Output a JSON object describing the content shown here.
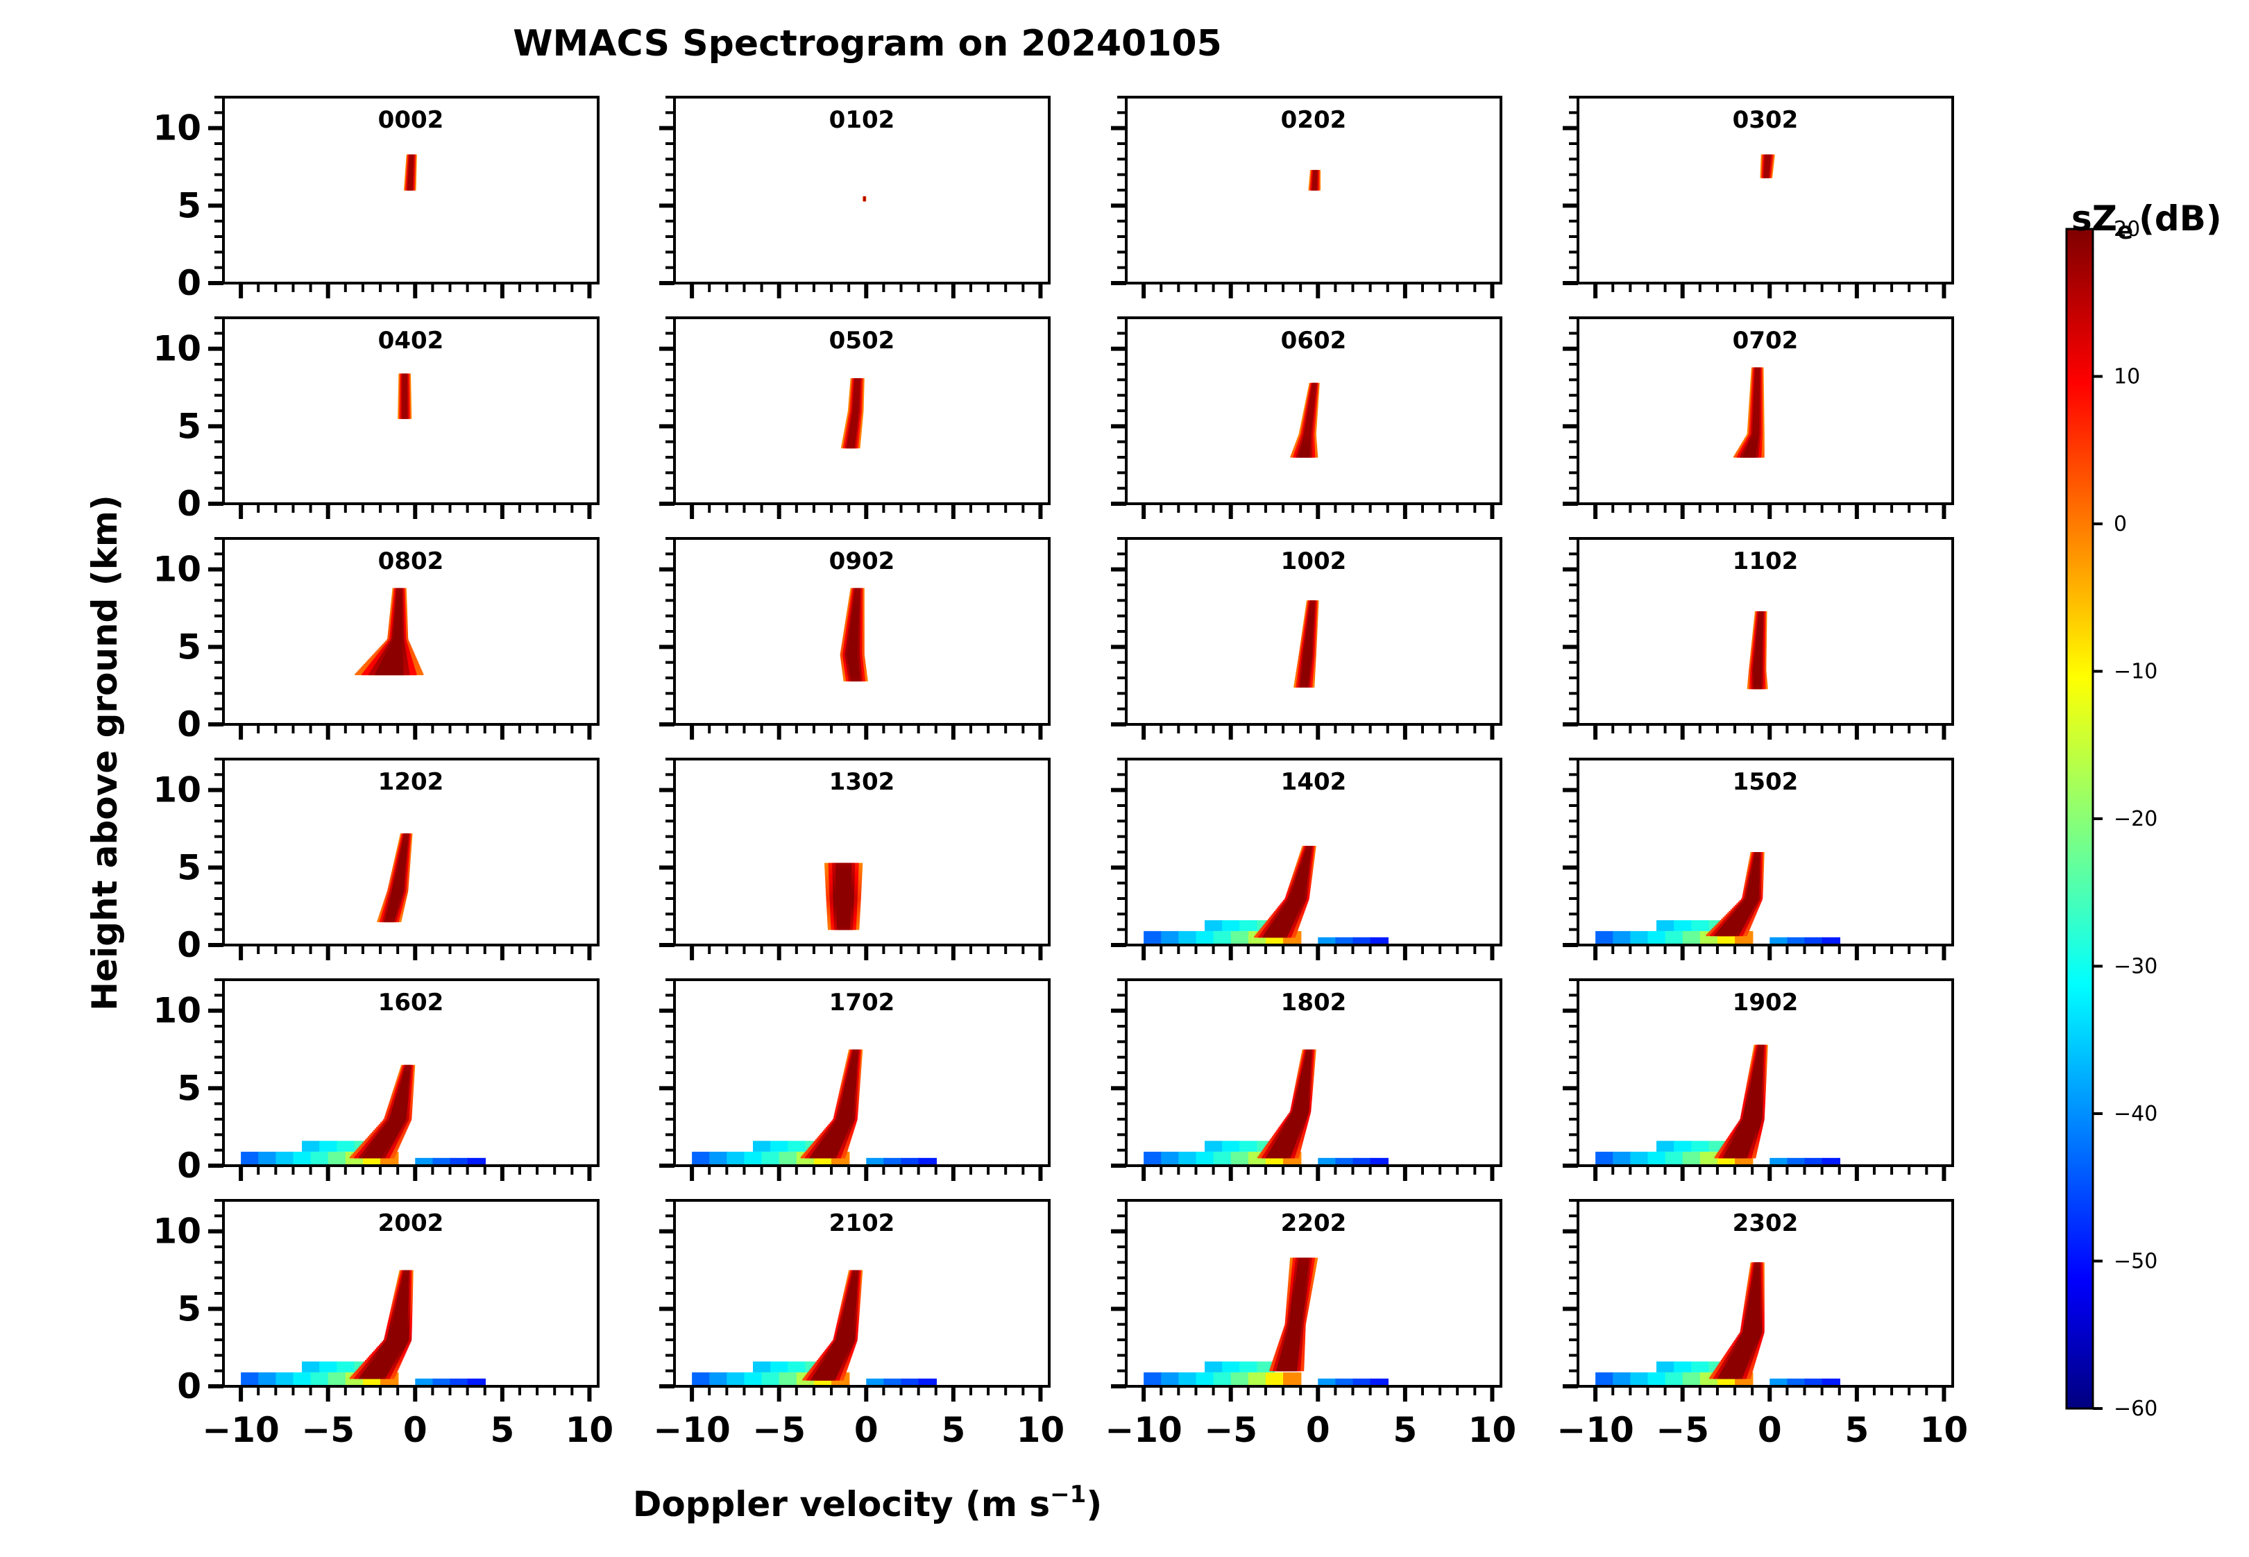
{
  "chart_data": {
    "type": "heatmap",
    "title": "WMACS Spectrogram on 20240105",
    "xlabel": "Doppler velocity (m s",
    "xlabel_exponent": "−1",
    "xlabel_close": ")",
    "ylabel": "Height above ground (km)",
    "xlim": [
      -11,
      10.5
    ],
    "ylim": [
      0,
      12
    ],
    "x_ticks": [
      -10,
      -5,
      0,
      5,
      10
    ],
    "x_tick_labels": [
      "−10",
      "−5",
      "0",
      "5",
      "10"
    ],
    "y_ticks": [
      0,
      5,
      10
    ],
    "y_tick_labels": [
      "0",
      "5",
      "10"
    ],
    "colorbar": {
      "label": "sZ",
      "label_subscript": "e",
      "label_units": "(dB)",
      "min": -60,
      "max": 20,
      "colormap": "jet",
      "ticks": [
        20,
        10,
        0,
        -10,
        -20,
        -30,
        -40,
        -50,
        -60
      ],
      "tick_labels": [
        "20",
        "10",
        "0",
        "−10",
        "−20",
        "−30",
        "−40",
        "−50",
        "−60"
      ]
    },
    "panels": [
      {
        "label": "0002",
        "column": [
          [
            6.0,
            -0.3,
            0.35,
            -0.3
          ],
          [
            8.3,
            -0.2,
            0.3,
            -0.35
          ]
        ],
        "ground": 0
      },
      {
        "label": "0102",
        "column": [
          [
            5.3,
            -0.1,
            0.1,
            -0.35
          ],
          [
            5.6,
            -0.1,
            0.1,
            -0.35
          ]
        ],
        "ground": 0
      },
      {
        "label": "0202",
        "column": [
          [
            6.0,
            -0.2,
            0.35,
            -0.3
          ],
          [
            7.3,
            -0.15,
            0.3,
            -0.35
          ]
        ],
        "ground": 0
      },
      {
        "label": "0302",
        "column": [
          [
            6.8,
            -0.2,
            0.35,
            -0.3
          ],
          [
            8.3,
            -0.1,
            0.4,
            -0.35
          ]
        ],
        "ground": 0
      },
      {
        "label": "0402",
        "column": [
          [
            5.5,
            -0.6,
            0.4,
            -0.3
          ],
          [
            8.4,
            -0.6,
            0.35,
            -0.3
          ]
        ],
        "ground": 0
      },
      {
        "label": "0502",
        "column": [
          [
            3.6,
            -0.9,
            0.55,
            -0.05
          ],
          [
            6.0,
            -0.6,
            0.45,
            -0.15
          ],
          [
            8.1,
            -0.5,
            0.4,
            -0.35
          ]
        ],
        "ground": 0
      },
      {
        "label": "0602",
        "column": [
          [
            3.0,
            -0.8,
            0.8,
            2
          ],
          [
            4.5,
            -0.6,
            0.5,
            -0.1
          ],
          [
            7.8,
            -0.2,
            0.3,
            -0.35
          ]
        ],
        "ground": 0
      },
      {
        "label": "0702",
        "column": [
          [
            3.0,
            -1.2,
            0.9,
            3
          ],
          [
            4.5,
            -0.8,
            0.5,
            0
          ],
          [
            8.8,
            -0.7,
            0.35,
            -0.25
          ]
        ],
        "ground": 0
      },
      {
        "label": "0802",
        "column": [
          [
            3.2,
            -1.5,
            2.0,
            1.5
          ],
          [
            5.5,
            -1.0,
            0.6,
            4
          ],
          [
            8.8,
            -0.9,
            0.4,
            -0.2
          ]
        ],
        "ground": 0
      },
      {
        "label": "0902",
        "column": [
          [
            2.8,
            -0.6,
            0.7,
            -0.1
          ],
          [
            4.5,
            -0.8,
            0.7,
            4
          ],
          [
            8.8,
            -0.5,
            0.4,
            -0.3
          ]
        ],
        "ground": 0
      },
      {
        "label": "1002",
        "column": [
          [
            2.4,
            -0.8,
            0.6,
            -0.1
          ],
          [
            4.5,
            -0.6,
            0.5,
            4
          ],
          [
            8.0,
            -0.3,
            0.35,
            -0.3
          ]
        ],
        "ground": 0
      },
      {
        "label": "1102",
        "column": [
          [
            2.3,
            -0.7,
            0.6,
            -0.1
          ],
          [
            3.5,
            -0.7,
            0.5,
            4
          ],
          [
            7.3,
            -0.5,
            0.35,
            -0.3
          ]
        ],
        "ground": 0
      },
      {
        "label": "1202",
        "column": [
          [
            1.5,
            -1.5,
            0.7,
            -0.1
          ],
          [
            3.5,
            -1.0,
            0.6,
            5
          ],
          [
            7.2,
            -0.5,
            0.35,
            -0.3
          ]
        ],
        "ground": 0
      },
      {
        "label": "1302",
        "column": [
          [
            1.0,
            -1.3,
            0.9,
            -0.1
          ],
          [
            3.0,
            -1.3,
            1.0,
            6
          ],
          [
            5.3,
            -1.3,
            1.1,
            -0.3
          ]
        ],
        "ground": 0
      },
      {
        "label": "1402",
        "column": [
          [
            0.5,
            -2.5,
            1.2,
            4
          ],
          [
            3.0,
            -1.2,
            0.7,
            10
          ],
          [
            6.4,
            -0.5,
            0.4,
            -0.2
          ]
        ],
        "ground": 1
      },
      {
        "label": "1502",
        "column": [
          [
            0.6,
            -2.5,
            1.2,
            4
          ],
          [
            3.0,
            -1.0,
            0.6,
            9
          ],
          [
            6.0,
            -0.7,
            0.4,
            -0.2
          ]
        ],
        "ground": 1
      },
      {
        "label": "1602",
        "column": [
          [
            0.5,
            -2.5,
            1.3,
            3
          ],
          [
            3.0,
            -1.0,
            0.8,
            7
          ],
          [
            6.5,
            -0.4,
            0.4,
            -0.2
          ]
        ],
        "ground": 1
      },
      {
        "label": "1702",
        "column": [
          [
            0.5,
            -2.5,
            1.3,
            4
          ],
          [
            3.0,
            -1.2,
            0.7,
            10
          ],
          [
            7.5,
            -0.6,
            0.4,
            -0.2
          ]
        ],
        "ground": 1
      },
      {
        "label": "1802",
        "column": [
          [
            0.5,
            -2.3,
            1.2,
            4
          ],
          [
            3.5,
            -1.0,
            0.6,
            12
          ],
          [
            7.5,
            -0.5,
            0.4,
            -0.2
          ]
        ],
        "ground": 1
      },
      {
        "label": "1902",
        "column": [
          [
            0.5,
            -2.0,
            1.2,
            4
          ],
          [
            3.0,
            -1.0,
            0.7,
            13
          ],
          [
            7.8,
            -0.5,
            0.4,
            -0.2
          ]
        ],
        "ground": 1
      },
      {
        "label": "2002",
        "column": [
          [
            0.5,
            -2.5,
            1.3,
            4
          ],
          [
            3.0,
            -1.0,
            0.8,
            13
          ],
          [
            7.5,
            -0.5,
            0.4,
            -0.2
          ]
        ],
        "ground": 1
      },
      {
        "label": "2102",
        "column": [
          [
            0.4,
            -2.5,
            1.2,
            4
          ],
          [
            3.0,
            -1.2,
            0.7,
            12
          ],
          [
            7.5,
            -0.6,
            0.4,
            -0.2
          ]
        ],
        "ground": 1
      },
      {
        "label": "2202",
        "column": [
          [
            1.0,
            -1.8,
            1.0,
            5
          ],
          [
            4.0,
            -1.3,
            0.6,
            8
          ],
          [
            8.3,
            -0.8,
            0.8,
            -0.2
          ]
        ],
        "ground": 1
      },
      {
        "label": "2302",
        "column": [
          [
            0.5,
            -2.3,
            1.2,
            4
          ],
          [
            3.5,
            -1.0,
            0.7,
            12
          ],
          [
            8.0,
            -0.7,
            0.4,
            -0.2
          ]
        ],
        "ground": 1
      }
    ]
  }
}
